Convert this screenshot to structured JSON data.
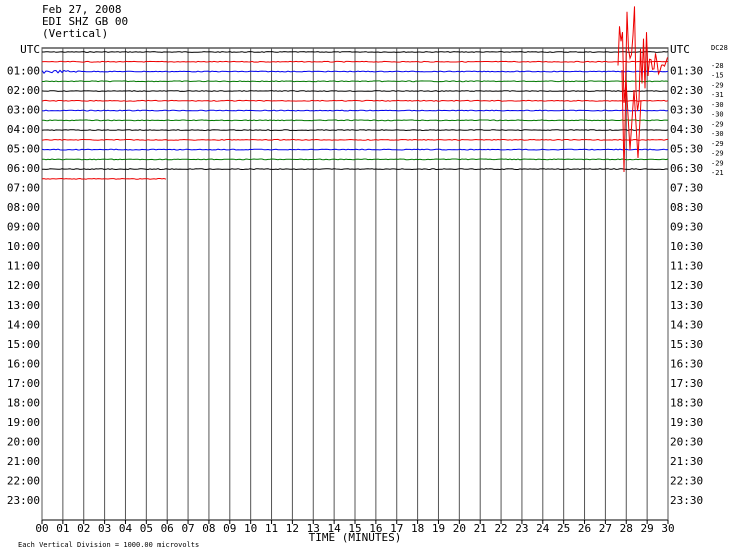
{
  "header": {
    "date": "Feb 27, 2008",
    "station": "EDI SHZ GB 00",
    "component": "(Vertical)"
  },
  "left_labels": [
    "UTC",
    "01:00",
    "02:00",
    "03:00",
    "04:00",
    "05:00",
    "06:00",
    "07:00",
    "08:00",
    "09:00",
    "10:00",
    "11:00",
    "12:00",
    "13:00",
    "14:00",
    "15:00",
    "16:00",
    "17:00",
    "18:00",
    "19:00",
    "20:00",
    "21:00",
    "22:00",
    "23:00"
  ],
  "right_labels": [
    "UTC",
    "01:30",
    "02:30",
    "03:30",
    "04:30",
    "05:30",
    "06:30",
    "07:30",
    "08:30",
    "09:30",
    "10:30",
    "11:30",
    "12:30",
    "13:30",
    "14:30",
    "15:30",
    "16:30",
    "17:30",
    "18:30",
    "19:30",
    "20:30",
    "21:30",
    "22:30",
    "23:30"
  ],
  "x_labels": [
    "00",
    "01",
    "02",
    "03",
    "04",
    "05",
    "06",
    "07",
    "08",
    "09",
    "10",
    "11",
    "12",
    "13",
    "14",
    "15",
    "16",
    "17",
    "18",
    "19",
    "20",
    "21",
    "22",
    "23",
    "24",
    "25",
    "26",
    "27",
    "28",
    "29",
    "30"
  ],
  "x_axis_title": "TIME (MINUTES)",
  "dc_header": "DC28",
  "dc_values": [
    "-28",
    "-15",
    "-29",
    "-31",
    "-30",
    "-30",
    "-29",
    "-30",
    "-29",
    "-29",
    "-29",
    "-21"
  ],
  "footer": "Each Vertical Division = 1000.00 microvolts"
}
